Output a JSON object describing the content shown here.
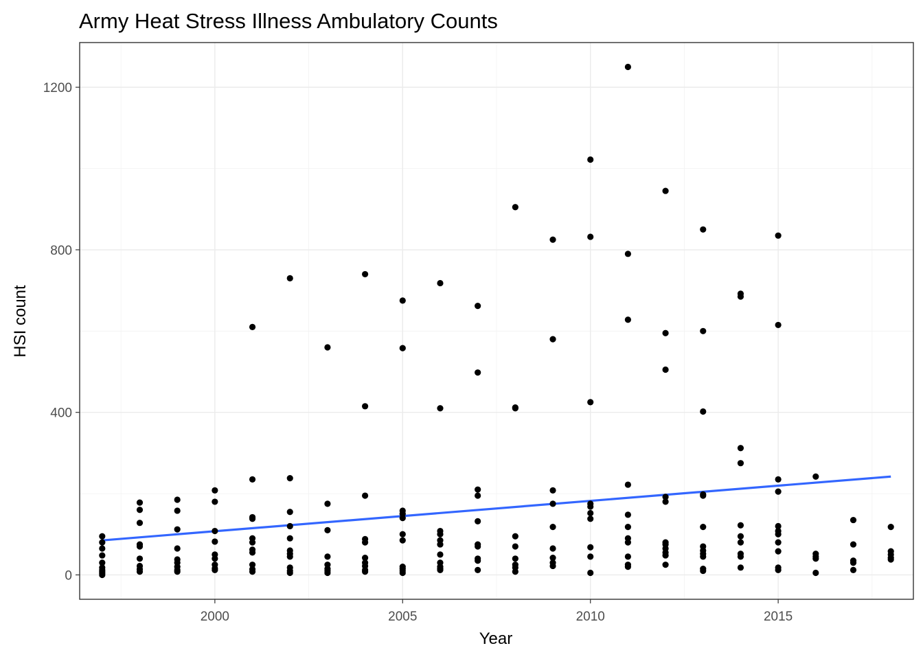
{
  "chart_data": {
    "type": "scatter",
    "title": "Army Heat Stress Illness Ambulatory Counts",
    "xlabel": "Year",
    "ylabel": "HSI count",
    "xlim": [
      1996.4,
      2018.6
    ],
    "ylim": [
      -60,
      1310
    ],
    "x_ticks": [
      2000,
      2005,
      2010,
      2015
    ],
    "y_ticks": [
      0,
      400,
      800,
      1200
    ],
    "grid": true,
    "theme": "black-white",
    "colors": {
      "points": "#000000",
      "trend_line": "#3366ff",
      "grid": "#ebebeb",
      "panel_border": "#333333"
    },
    "series": [
      {
        "mark": "points",
        "points": [
          [
            1997,
            95
          ],
          [
            1997,
            80
          ],
          [
            1997,
            65
          ],
          [
            1997,
            48
          ],
          [
            1997,
            30
          ],
          [
            1997,
            18
          ],
          [
            1997,
            12
          ],
          [
            1997,
            8
          ],
          [
            1997,
            4
          ],
          [
            1997,
            0
          ],
          [
            1998,
            178
          ],
          [
            1998,
            160
          ],
          [
            1998,
            128
          ],
          [
            1998,
            75
          ],
          [
            1998,
            70
          ],
          [
            1998,
            40
          ],
          [
            1998,
            22
          ],
          [
            1998,
            14
          ],
          [
            1998,
            8
          ],
          [
            1999,
            185
          ],
          [
            1999,
            158
          ],
          [
            1999,
            112
          ],
          [
            1999,
            65
          ],
          [
            1999,
            38
          ],
          [
            1999,
            30
          ],
          [
            1999,
            20
          ],
          [
            1999,
            12
          ],
          [
            1999,
            8
          ],
          [
            2000,
            208
          ],
          [
            2000,
            180
          ],
          [
            2000,
            108
          ],
          [
            2000,
            82
          ],
          [
            2000,
            50
          ],
          [
            2000,
            40
          ],
          [
            2000,
            25
          ],
          [
            2000,
            16
          ],
          [
            2000,
            12
          ],
          [
            2001,
            610
          ],
          [
            2001,
            235
          ],
          [
            2001,
            142
          ],
          [
            2001,
            138
          ],
          [
            2001,
            90
          ],
          [
            2001,
            80
          ],
          [
            2001,
            62
          ],
          [
            2001,
            55
          ],
          [
            2001,
            25
          ],
          [
            2001,
            14
          ],
          [
            2001,
            8
          ],
          [
            2002,
            730
          ],
          [
            2002,
            238
          ],
          [
            2002,
            155
          ],
          [
            2002,
            120
          ],
          [
            2002,
            90
          ],
          [
            2002,
            60
          ],
          [
            2002,
            52
          ],
          [
            2002,
            45
          ],
          [
            2002,
            18
          ],
          [
            2002,
            10
          ],
          [
            2002,
            5
          ],
          [
            2003,
            560
          ],
          [
            2003,
            175
          ],
          [
            2003,
            110
          ],
          [
            2003,
            45
          ],
          [
            2003,
            25
          ],
          [
            2003,
            15
          ],
          [
            2003,
            10
          ],
          [
            2003,
            5
          ],
          [
            2004,
            740
          ],
          [
            2004,
            415
          ],
          [
            2004,
            195
          ],
          [
            2004,
            88
          ],
          [
            2004,
            80
          ],
          [
            2004,
            42
          ],
          [
            2004,
            30
          ],
          [
            2004,
            22
          ],
          [
            2004,
            12
          ],
          [
            2004,
            8
          ],
          [
            2005,
            675
          ],
          [
            2005,
            558
          ],
          [
            2005,
            158
          ],
          [
            2005,
            150
          ],
          [
            2005,
            140
          ],
          [
            2005,
            100
          ],
          [
            2005,
            85
          ],
          [
            2005,
            20
          ],
          [
            2005,
            15
          ],
          [
            2005,
            10
          ],
          [
            2005,
            5
          ],
          [
            2006,
            718
          ],
          [
            2006,
            410
          ],
          [
            2006,
            108
          ],
          [
            2006,
            100
          ],
          [
            2006,
            85
          ],
          [
            2006,
            75
          ],
          [
            2006,
            50
          ],
          [
            2006,
            30
          ],
          [
            2006,
            20
          ],
          [
            2006,
            15
          ],
          [
            2006,
            12
          ],
          [
            2007,
            662
          ],
          [
            2007,
            498
          ],
          [
            2007,
            210
          ],
          [
            2007,
            195
          ],
          [
            2007,
            132
          ],
          [
            2007,
            75
          ],
          [
            2007,
            70
          ],
          [
            2007,
            40
          ],
          [
            2007,
            35
          ],
          [
            2007,
            12
          ],
          [
            2008,
            905
          ],
          [
            2008,
            412
          ],
          [
            2008,
            410
          ],
          [
            2008,
            95
          ],
          [
            2008,
            70
          ],
          [
            2008,
            40
          ],
          [
            2008,
            25
          ],
          [
            2008,
            18
          ],
          [
            2008,
            8
          ],
          [
            2009,
            825
          ],
          [
            2009,
            580
          ],
          [
            2009,
            208
          ],
          [
            2009,
            175
          ],
          [
            2009,
            118
          ],
          [
            2009,
            65
          ],
          [
            2009,
            42
          ],
          [
            2009,
            30
          ],
          [
            2009,
            22
          ],
          [
            2010,
            1022
          ],
          [
            2010,
            832
          ],
          [
            2010,
            425
          ],
          [
            2010,
            175
          ],
          [
            2010,
            168
          ],
          [
            2010,
            152
          ],
          [
            2010,
            138
          ],
          [
            2010,
            68
          ],
          [
            2010,
            45
          ],
          [
            2010,
            5
          ],
          [
            2011,
            1250
          ],
          [
            2011,
            790
          ],
          [
            2011,
            628
          ],
          [
            2011,
            222
          ],
          [
            2011,
            148
          ],
          [
            2011,
            118
          ],
          [
            2011,
            90
          ],
          [
            2011,
            80
          ],
          [
            2011,
            45
          ],
          [
            2011,
            25
          ],
          [
            2011,
            20
          ],
          [
            2012,
            945
          ],
          [
            2012,
            595
          ],
          [
            2012,
            505
          ],
          [
            2012,
            192
          ],
          [
            2012,
            180
          ],
          [
            2012,
            80
          ],
          [
            2012,
            75
          ],
          [
            2012,
            65
          ],
          [
            2012,
            55
          ],
          [
            2012,
            48
          ],
          [
            2012,
            25
          ],
          [
            2013,
            850
          ],
          [
            2013,
            600
          ],
          [
            2013,
            402
          ],
          [
            2013,
            198
          ],
          [
            2013,
            195
          ],
          [
            2013,
            118
          ],
          [
            2013,
            70
          ],
          [
            2013,
            60
          ],
          [
            2013,
            52
          ],
          [
            2013,
            45
          ],
          [
            2013,
            15
          ],
          [
            2013,
            10
          ],
          [
            2014,
            692
          ],
          [
            2014,
            685
          ],
          [
            2014,
            312
          ],
          [
            2014,
            275
          ],
          [
            2014,
            122
          ],
          [
            2014,
            95
          ],
          [
            2014,
            80
          ],
          [
            2014,
            52
          ],
          [
            2014,
            45
          ],
          [
            2014,
            18
          ],
          [
            2015,
            835
          ],
          [
            2015,
            615
          ],
          [
            2015,
            235
          ],
          [
            2015,
            205
          ],
          [
            2015,
            120
          ],
          [
            2015,
            108
          ],
          [
            2015,
            100
          ],
          [
            2015,
            80
          ],
          [
            2015,
            58
          ],
          [
            2015,
            18
          ],
          [
            2015,
            12
          ],
          [
            2016,
            242
          ],
          [
            2016,
            52
          ],
          [
            2016,
            45
          ],
          [
            2016,
            40
          ],
          [
            2016,
            5
          ],
          [
            2017,
            135
          ],
          [
            2017,
            75
          ],
          [
            2017,
            35
          ],
          [
            2017,
            30
          ],
          [
            2017,
            12
          ],
          [
            2018,
            118
          ],
          [
            2018,
            58
          ],
          [
            2018,
            50
          ],
          [
            2018,
            42
          ],
          [
            2018,
            38
          ]
        ]
      },
      {
        "mark": "line",
        "x": [
          1997,
          2018
        ],
        "y": [
          85,
          242
        ]
      }
    ]
  }
}
